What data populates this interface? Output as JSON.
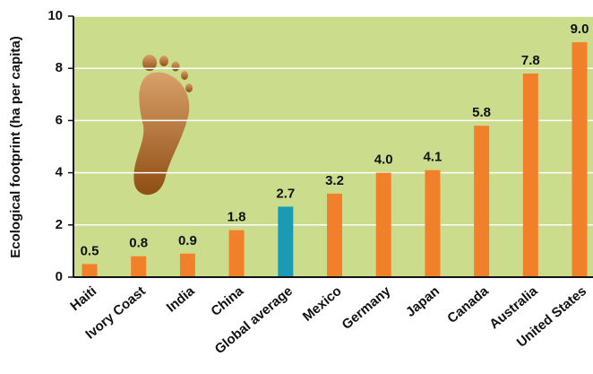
{
  "chart_data": {
    "type": "bar",
    "y_label": "Ecological footprint (ha per capita)",
    "categories": [
      "Haiti",
      "Ivory Coast",
      "India",
      "China",
      "Global average",
      "Mexico",
      "Germany",
      "Japan",
      "Canada",
      "Australia",
      "United States"
    ],
    "values": [
      0.5,
      0.8,
      0.9,
      1.8,
      2.7,
      3.2,
      4.0,
      4.1,
      5.8,
      7.8,
      9.0
    ],
    "value_labels": [
      "0.5",
      "0.8",
      "0.9",
      "1.8",
      "2.7",
      "3.2",
      "4.0",
      "4.1",
      "5.8",
      "7.8",
      "9.0"
    ],
    "colors": [
      "#f2802b",
      "#f2802b",
      "#f2802b",
      "#f2802b",
      "#1a9bb3",
      "#f2802b",
      "#f2802b",
      "#f2802b",
      "#f2802b",
      "#f2802b",
      "#f2802b"
    ],
    "ylim": [
      0,
      10
    ],
    "yticks": [
      0,
      2,
      4,
      6,
      8,
      10
    ],
    "grid": true
  }
}
